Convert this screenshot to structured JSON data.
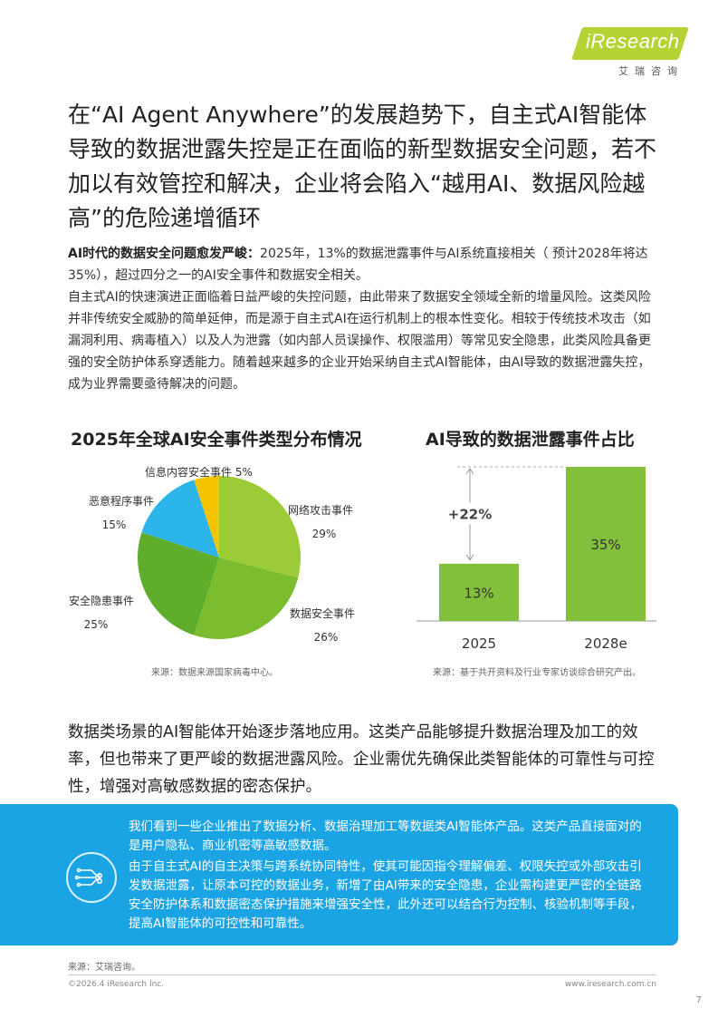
{
  "brand": {
    "logo": "iResearch",
    "sub": "艾瑞咨询"
  },
  "headline": "在“AI Agent Anywhere”的发展趋势下，自主式AI智能体导致的数据泄露失控是正在面临的新型数据安全问题，若不加以有效管控和解决，企业将会陷入“越用AI、数据风险越高”的危险递增循环",
  "intro": {
    "lead": "AI时代的数据安全问题愈发严峻：",
    "p1": "2025年，13%的数据泄露事件与AI系统直接相关（ 预计2028年将达35%），超过四分之一的AI安全事件和数据安全相关。",
    "p2": "自主式AI的快速演进正面临着日益严峻的失控问题，由此带来了数据安全领域全新的增量风险。这类风险并非传统安全威胁的简单延伸，而是源于自主式AI在运行机制上的根本性变化。相较于传统技术攻击（如漏洞利用、病毒植入）以及人为泄露（如内部人员误操作、权限滥用）等常见安全隐患，此类风险具备更强的安全防护体系穿透能力。随着越来越多的企业开始采纳自主式AI智能体，由AI导致的数据泄露失控，成为业界需要亟待解决的问题。"
  },
  "chart_data": [
    {
      "type": "pie",
      "title": "2025年全球AI安全事件类型分布情况",
      "slices": [
        {
          "label": "网络攻击事件",
          "value": 29,
          "display": "29%",
          "color": "#9ccb38"
        },
        {
          "label": "数据安全事件",
          "value": 26,
          "display": "26%",
          "color": "#7bbd2f"
        },
        {
          "label": "安全隐患事件",
          "value": 25,
          "display": "25%",
          "color": "#5fae2b"
        },
        {
          "label": "恶意程序事件",
          "value": 15,
          "display": "15%",
          "color": "#2bb5ea"
        },
        {
          "label": "信息内容安全事件",
          "value": 5,
          "display": "5%",
          "color": "#f5c400"
        }
      ],
      "source": "来源：数据来源国家病毒中心。"
    },
    {
      "type": "bar",
      "title": "AI导致的数据泄露事件占比",
      "categories": [
        "2025",
        "2028e"
      ],
      "values": [
        13,
        35
      ],
      "labels": [
        "13%",
        "35%"
      ],
      "ylim": [
        0,
        40
      ],
      "annotation": "+22%",
      "color": "#82c03b",
      "source": "来源：基于共开资料及行业专家访谈综合研究产出。"
    }
  ],
  "para2": "数据类场景的AI智能体开始逐步落地应用。这类产品能够提升数据治理及加工的效率，但也带来了更严峻的数据泄露风险。企业需优先确保此类智能体的可靠性与可控性，增强对高敏感数据的密态保护。",
  "box": {
    "p1": "我们看到一些企业推出了数据分析、数据治理加工等数据类AI智能体产品。这类产品直接面对的是用户隐私、商业机密等高敏感数据。",
    "p2": "由于自主式AI的自主决策与跨系统协同特性，使其可能因指令理解偏差、权限失控或外部攻击引发数据泄露，让原本可控的数据业务，新增了由AI带来的安全隐患，企业需构建更严密的全链路安全防护体系和数据密态保护措施来增强安全性，此外还可以结合行为控制、核验机制等手段，提高AI智能体的可控性和可靠性。",
    "icon": "network-icon"
  },
  "footer": {
    "source": "来源：艾瑞咨询。",
    "copyright": "©2026.4 iResearch Inc.",
    "site": "www.iresearch.com.cn",
    "page": "7"
  }
}
